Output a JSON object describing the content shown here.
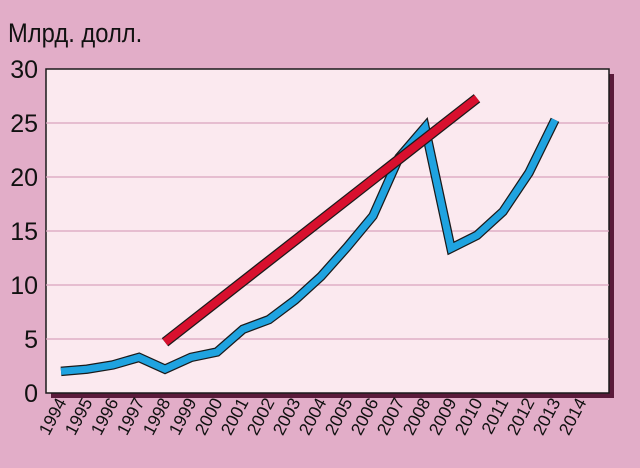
{
  "chart_data": {
    "type": "line",
    "ylabel": "Млрд. долл.",
    "ylim": [
      0,
      30
    ],
    "yticks": [
      "0",
      "5",
      "10",
      "15",
      "20",
      "25",
      "30"
    ],
    "xlim": [
      1994,
      2014
    ],
    "categories": [
      "1994",
      "1995",
      "1996",
      "1997",
      "1998",
      "1999",
      "2000",
      "2001",
      "2002",
      "2003",
      "2004",
      "2005",
      "2006",
      "2007",
      "2008",
      "2009",
      "2010",
      "2011",
      "2012",
      "2013",
      "2014"
    ],
    "grid": true,
    "colors": {
      "background": "#e2adc8",
      "plot_area": "#fbe9ef",
      "gridline": "#d9a3bd",
      "series_actual": "#1fa3e0",
      "series_trend": "#d8102e"
    },
    "series": [
      {
        "values": [
          {
            "x": 1994,
            "y": 2.0
          },
          {
            "x": 1995,
            "y": 2.2
          },
          {
            "x": 1996,
            "y": 2.6
          },
          {
            "x": 1997,
            "y": 3.3
          },
          {
            "x": 1998,
            "y": 2.2
          },
          {
            "x": 1999,
            "y": 3.3
          },
          {
            "x": 2000,
            "y": 3.8
          },
          {
            "x": 2001,
            "y": 5.9
          },
          {
            "x": 2002,
            "y": 6.8
          },
          {
            "x": 2003,
            "y": 8.6
          },
          {
            "x": 2004,
            "y": 10.8
          },
          {
            "x": 2005,
            "y": 13.5
          },
          {
            "x": 2006,
            "y": 16.4
          },
          {
            "x": 2007,
            "y": 21.8
          },
          {
            "x": 2008,
            "y": 24.6
          },
          {
            "x": 2009,
            "y": 13.4
          },
          {
            "x": 2010,
            "y": 14.6
          },
          {
            "x": 2011,
            "y": 16.8
          },
          {
            "x": 2012,
            "y": 20.4
          },
          {
            "x": 2013,
            "y": 25.3
          }
        ]
      },
      {
        "values": [
          {
            "x": 1998,
            "y": 4.7
          },
          {
            "x": 2010,
            "y": 27.3
          }
        ]
      }
    ]
  }
}
